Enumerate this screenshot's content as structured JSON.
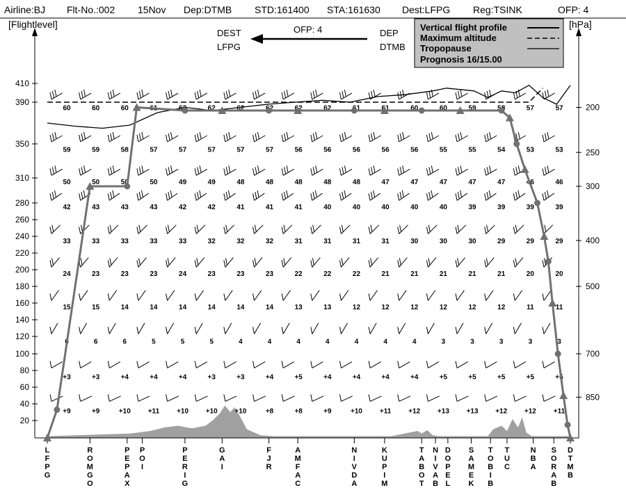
{
  "header": {
    "airline": "Airline:BJ",
    "flight_no": "Flt-No.:002",
    "date": "15Nov",
    "dep": "Dep:DTMB",
    "std": "STD:161400",
    "sta": "STA:161630",
    "dest": "Dest:LFPG",
    "reg": "Reg:TSINK",
    "ofp": "OFP: 4"
  },
  "direction_box": {
    "dest_label": "DEST",
    "dest_code": "LFPG",
    "ofp": "OFP: 4",
    "dep_label": "DEP",
    "dep_code": "DTMB"
  },
  "legend": {
    "profile": "Vertical flight profile",
    "max_alt": "Maximum altitude",
    "tropo": "Tropopause",
    "prognosis": "Prognosis  16/15.00"
  },
  "colors": {
    "profile": "#707070",
    "terrain": "#a0a0a0",
    "legend_bg": "#c0c0c0",
    "ink": "#000000"
  },
  "chart_data": {
    "type": "line",
    "xlabel": "",
    "ylabel_left": "[Flightlevel]",
    "ylabel_right": "[hPa]",
    "ylim": [
      0,
      410
    ],
    "flight_levels": [
      410,
      390,
      350,
      310,
      280,
      260,
      240,
      220,
      200,
      180,
      160,
      140,
      120,
      100,
      80,
      60,
      40,
      20
    ],
    "pressure_ticks": [
      {
        "label": "200",
        "fl": 385
      },
      {
        "label": "250",
        "fl": 340
      },
      {
        "label": "300",
        "fl": 300
      },
      {
        "label": "400",
        "fl": 235
      },
      {
        "label": "500",
        "fl": 180
      },
      {
        "label": "700",
        "fl": 100
      },
      {
        "label": "850",
        "fl": 48
      }
    ],
    "waypoints": [
      {
        "name": "LFPG",
        "x": 0
      },
      {
        "name": "ROMGO",
        "x": 62
      },
      {
        "name": "PEPAX",
        "x": 116
      },
      {
        "name": "POI",
        "x": 138
      },
      {
        "name": "PERIG",
        "x": 200
      },
      {
        "name": "GAI",
        "x": 254
      },
      {
        "name": "FJR",
        "x": 322
      },
      {
        "name": "AMFAC",
        "x": 364
      },
      {
        "name": "NIVDA",
        "x": 446
      },
      {
        "name": "KUPIM",
        "x": 490
      },
      {
        "name": "TABOT",
        "x": 544
      },
      {
        "name": "NIVAB",
        "x": 564
      },
      {
        "name": "DOPEL",
        "x": 582
      },
      {
        "name": "SAMEK",
        "x": 616
      },
      {
        "name": "TOBIB",
        "x": 644
      },
      {
        "name": "TUC",
        "x": 668
      },
      {
        "name": "NBA",
        "x": 706
      },
      {
        "name": "SORAB",
        "x": 736
      },
      {
        "name": "DTMB",
        "x": 760
      }
    ],
    "profile": [
      [
        0,
        0
      ],
      [
        14,
        33
      ],
      [
        62,
        300
      ],
      [
        116,
        300
      ],
      [
        130,
        385
      ],
      [
        200,
        382
      ],
      [
        254,
        382
      ],
      [
        322,
        382
      ],
      [
        364,
        382
      ],
      [
        446,
        382
      ],
      [
        490,
        382
      ],
      [
        544,
        382
      ],
      [
        600,
        382
      ],
      [
        660,
        382
      ],
      [
        672,
        375
      ],
      [
        682,
        350
      ],
      [
        694,
        320
      ],
      [
        712,
        280
      ],
      [
        722,
        240
      ],
      [
        728,
        210
      ],
      [
        734,
        160
      ],
      [
        742,
        100
      ],
      [
        750,
        50
      ],
      [
        756,
        15
      ],
      [
        760,
        0
      ]
    ],
    "max_altitude": [
      [
        0,
        390
      ],
      [
        660,
        390
      ],
      [
        700,
        390
      ],
      [
        720,
        405
      ]
    ],
    "tropopause": [
      [
        0,
        370
      ],
      [
        40,
        367
      ],
      [
        80,
        365
      ],
      [
        120,
        368
      ],
      [
        160,
        380
      ],
      [
        200,
        385
      ],
      [
        240,
        382
      ],
      [
        280,
        385
      ],
      [
        320,
        388
      ],
      [
        360,
        390
      ],
      [
        400,
        392
      ],
      [
        440,
        390
      ],
      [
        480,
        396
      ],
      [
        520,
        398
      ],
      [
        560,
        402
      ],
      [
        580,
        405
      ],
      [
        620,
        402
      ],
      [
        640,
        395
      ],
      [
        660,
        402
      ],
      [
        680,
        400
      ],
      [
        700,
        408
      ],
      [
        720,
        395
      ],
      [
        740,
        388
      ],
      [
        760,
        408
      ]
    ],
    "terrain": [
      [
        0,
        2
      ],
      [
        40,
        3
      ],
      [
        80,
        4
      ],
      [
        120,
        5
      ],
      [
        150,
        8
      ],
      [
        170,
        12
      ],
      [
        190,
        14
      ],
      [
        210,
        11
      ],
      [
        230,
        14
      ],
      [
        240,
        20
      ],
      [
        250,
        28
      ],
      [
        258,
        38
      ],
      [
        266,
        30
      ],
      [
        272,
        36
      ],
      [
        280,
        25
      ],
      [
        290,
        10
      ],
      [
        310,
        3
      ],
      [
        330,
        2
      ],
      [
        400,
        2
      ],
      [
        500,
        2
      ],
      [
        538,
        8
      ],
      [
        544,
        5
      ],
      [
        552,
        9
      ],
      [
        560,
        3
      ],
      [
        570,
        2
      ],
      [
        640,
        2
      ],
      [
        648,
        10
      ],
      [
        660,
        14
      ],
      [
        668,
        8
      ],
      [
        676,
        22
      ],
      [
        684,
        12
      ],
      [
        690,
        24
      ],
      [
        696,
        6
      ],
      [
        704,
        2
      ],
      [
        760,
        2
      ]
    ],
    "temperature_rows": [
      {
        "fl": 385,
        "values": [
          "60",
          "60",
          "60",
          "61",
          "62",
          "62",
          "62",
          "62",
          "62",
          "62",
          "61",
          "61",
          "60",
          "60",
          "59",
          "58",
          "57",
          "57"
        ]
      },
      {
        "fl": 344,
        "values": [
          "59",
          "59",
          "58",
          "57",
          "57",
          "57",
          "57",
          "57",
          "56",
          "56",
          "56",
          "56",
          "56",
          "55",
          "55",
          "54",
          "53",
          "53"
        ]
      },
      {
        "fl": 306,
        "values": [
          "50",
          "50",
          "50",
          "50",
          "49",
          "49",
          "48",
          "48",
          "48",
          "48",
          "48",
          "47",
          "47",
          "47",
          "47",
          "47",
          "46",
          "46"
        ]
      },
      {
        "fl": 276,
        "values": [
          "42",
          "43",
          "43",
          "43",
          "42",
          "42",
          "41",
          "41",
          "41",
          "40",
          "40",
          "40",
          "40",
          "40",
          "39",
          "39",
          "39",
          "39"
        ]
      },
      {
        "fl": 235,
        "values": [
          "33",
          "33",
          "33",
          "33",
          "33",
          "32",
          "32",
          "32",
          "31",
          "31",
          "31",
          "31",
          "30",
          "30",
          "30",
          "29",
          "29",
          "29"
        ]
      },
      {
        "fl": 196,
        "values": [
          "24",
          "23",
          "23",
          "23",
          "24",
          "23",
          "23",
          "23",
          "22",
          "22",
          "22",
          "21",
          "21",
          "21",
          "21",
          "21",
          "20",
          "20"
        ]
      },
      {
        "fl": 156,
        "values": [
          "15",
          "15",
          "14",
          "14",
          "14",
          "14",
          "14",
          "14",
          "13",
          "13",
          "12",
          "12",
          "12",
          "12",
          "12",
          "12",
          "11",
          "11"
        ]
      },
      {
        "fl": 115,
        "values": [
          "6",
          "6",
          "6",
          "5",
          "5",
          "5",
          "4",
          "4",
          "4",
          "4",
          "4",
          "4",
          "4",
          "3",
          "3",
          "3",
          "3",
          "3"
        ]
      },
      {
        "fl": 73,
        "values": [
          "+3",
          "+3",
          "+4",
          "+4",
          "+4",
          "+3",
          "+3",
          "+4",
          "+5",
          "+4",
          "+4",
          "+4",
          "+4",
          "+5",
          "+5",
          "+5",
          "+5",
          "+5"
        ]
      },
      {
        "fl": 32,
        "values": [
          "+9",
          "+9",
          "+10",
          "+11",
          "+10",
          "+10",
          "+10",
          "+8",
          "+8",
          "+9",
          "+10",
          "+11",
          "+12",
          "+13",
          "+13",
          "+12",
          "+12",
          "+11"
        ]
      }
    ],
    "wind_rows": [
      {
        "fl": 393,
        "dir": 300,
        "barbs": 3
      },
      {
        "fl": 352,
        "dir": 300,
        "barbs": 3
      },
      {
        "fl": 313,
        "dir": 300,
        "barbs": 3
      },
      {
        "fl": 283,
        "dir": 305,
        "barbs": 3
      },
      {
        "fl": 243,
        "dir": 315,
        "barbs": 2
      },
      {
        "fl": 203,
        "dir": 320,
        "barbs": 2
      },
      {
        "fl": 163,
        "dir": 325,
        "barbs": 1
      },
      {
        "fl": 123,
        "dir": 330,
        "barbs": 1
      },
      {
        "fl": 83,
        "dir": 300,
        "barbs": 1
      },
      {
        "fl": 43,
        "dir": 295,
        "barbs": 1
      }
    ]
  }
}
